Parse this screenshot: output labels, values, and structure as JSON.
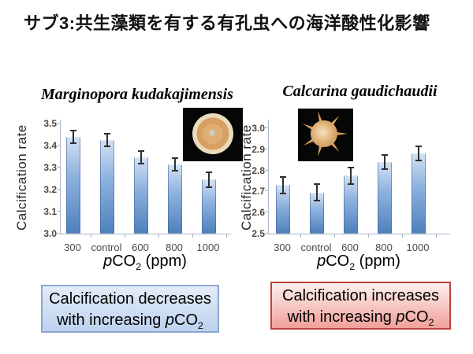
{
  "slide": {
    "title": "サブ3:共生藻類を有する有孔虫への海洋酸性化影響"
  },
  "chart_data": [
    {
      "type": "bar",
      "title": "Marginopora kudakajimensis",
      "ylabel": "Calcification rate",
      "xlabel_rich": [
        {
          "text": "p",
          "italic": true
        },
        {
          "text": "CO"
        },
        {
          "text": "2",
          "sub": true
        },
        {
          "text": " (ppm)"
        }
      ],
      "categories": [
        "300",
        "control",
        "600",
        "800",
        "1000"
      ],
      "values": [
        3.44,
        3.425,
        3.345,
        3.315,
        3.245
      ],
      "errors": [
        0.025,
        0.025,
        0.025,
        0.025,
        0.03
      ],
      "ylim": [
        3.0,
        3.5
      ],
      "ytick_step": 0.1,
      "grid": false,
      "legend": false,
      "bar_color_top": "#d3e1f4",
      "bar_color_mid": "#8fb3e0",
      "bar_color_bottom": "#4f81bd",
      "error_color": "#2f2f2f",
      "inset_icon": "disc-foraminifera-photo"
    },
    {
      "type": "bar",
      "title": "Calcarina gaudichaudii",
      "ylabel": "Calcification rate",
      "xlabel_rich": [
        {
          "text": "p",
          "italic": true
        },
        {
          "text": "CO"
        },
        {
          "text": "2",
          "sub": true
        },
        {
          "text": " (ppm)"
        }
      ],
      "categories": [
        "300",
        "control",
        "600",
        "800",
        "1000"
      ],
      "values": [
        2.73,
        2.695,
        2.775,
        2.84,
        2.88
      ],
      "errors": [
        0.035,
        0.035,
        0.035,
        0.03,
        0.03
      ],
      "ylim": [
        2.5,
        3.0
      ],
      "ytick_step": 0.1,
      "grid": false,
      "legend": false,
      "bar_color_top": "#d3e1f4",
      "bar_color_mid": "#8fb3e0",
      "bar_color_bottom": "#4f81bd",
      "error_color": "#2f2f2f",
      "inset_icon": "star-foraminifera-photo"
    }
  ],
  "conclusions": {
    "left": {
      "line1": "Calcification decreases",
      "line2_rich": [
        {
          "text": "with increasing "
        },
        {
          "text": "p",
          "italic": true
        },
        {
          "text": "CO"
        },
        {
          "text": "2",
          "sub": true
        }
      ],
      "fill_top": "#e3ecf8",
      "fill_bottom": "#bdd2ee",
      "border": "#8ca6cf"
    },
    "right": {
      "line1": "Calcification increases",
      "line2_rich": [
        {
          "text": "with increasing "
        },
        {
          "text": "p",
          "italic": true
        },
        {
          "text": "CO"
        },
        {
          "text": "2",
          "sub": true
        }
      ],
      "fill_top": "#fdf0ef",
      "fill_bottom": "#f1a09a",
      "border": "#b8433c"
    }
  }
}
